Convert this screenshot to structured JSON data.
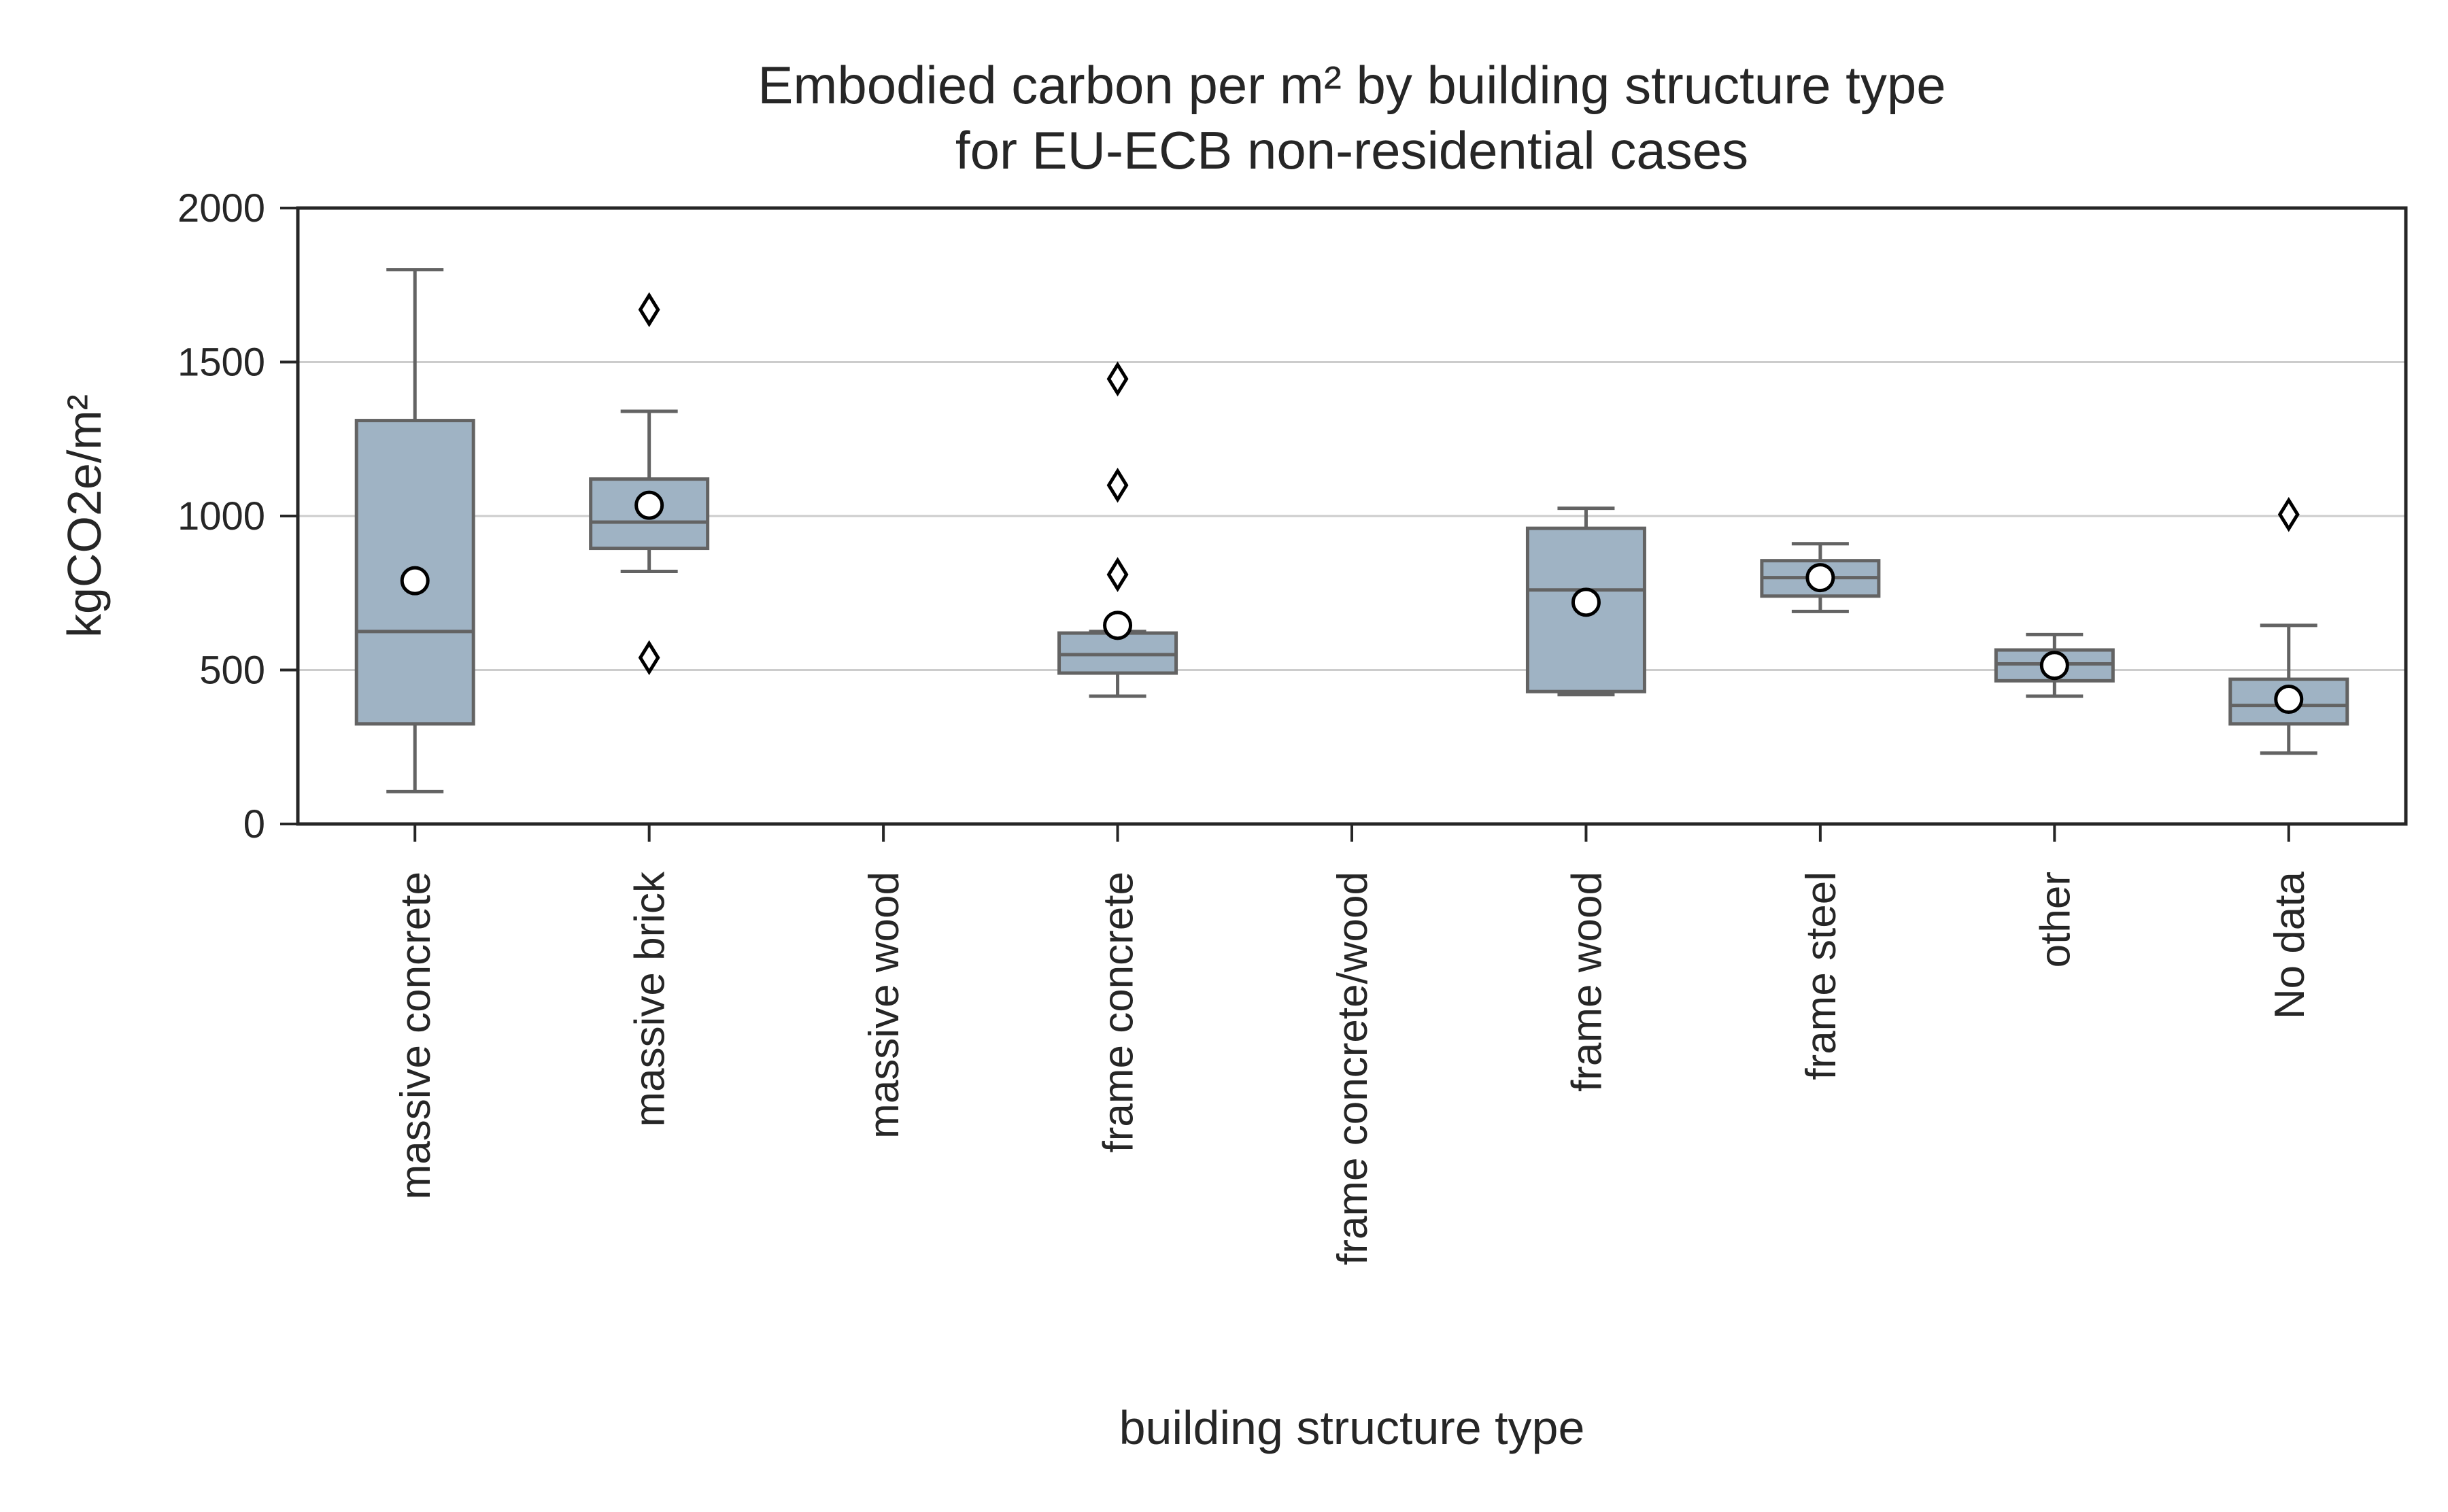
{
  "chart_data": {
    "type": "boxplot",
    "title": [
      "Embodied carbon per m² by building structure type",
      "for EU-ECB non-residential cases"
    ],
    "xlabel": "building structure type",
    "ylabel": "kgCO2e/m²",
    "ylim": [
      0,
      2000
    ],
    "yticks": [
      0,
      500,
      1000,
      1500,
      2000
    ],
    "grid": "horizontal",
    "colors": {
      "box": "#9fb3c4",
      "edge": "#636363",
      "mean_fill": "#ffffff",
      "mean_edge": "#000000",
      "grid": "#cccccc"
    },
    "categories": [
      "massive concrete",
      "massive brick",
      "massive wood",
      "frame concrete",
      "frame concrete/wood",
      "frame wood",
      "frame steel",
      "other",
      "No data"
    ],
    "boxes": [
      {
        "category": "massive concrete",
        "whisker_low": 105,
        "q1": 325,
        "median": 625,
        "q3": 1310,
        "whisker_high": 1800,
        "mean": 790,
        "outliers": []
      },
      {
        "category": "massive brick",
        "whisker_low": 820,
        "q1": 895,
        "median": 980,
        "q3": 1120,
        "whisker_high": 1340,
        "mean": 1035,
        "outliers": [
          1670,
          540
        ]
      },
      null,
      {
        "category": "frame concrete",
        "whisker_low": 415,
        "q1": 490,
        "median": 550,
        "q3": 620,
        "whisker_high": 625,
        "mean": 645,
        "outliers": [
          1445,
          1100,
          810
        ]
      },
      null,
      {
        "category": "frame wood",
        "whisker_low": 420,
        "q1": 430,
        "median": 760,
        "q3": 960,
        "whisker_high": 1025,
        "mean": 720,
        "outliers": []
      },
      {
        "category": "frame steel",
        "whisker_low": 690,
        "q1": 740,
        "median": 800,
        "q3": 855,
        "whisker_high": 910,
        "mean": 800,
        "outliers": []
      },
      {
        "category": "other",
        "whisker_low": 415,
        "q1": 465,
        "median": 520,
        "q3": 565,
        "whisker_high": 615,
        "mean": 515,
        "outliers": []
      },
      {
        "category": "No data",
        "whisker_low": 230,
        "q1": 325,
        "median": 385,
        "q3": 470,
        "whisker_high": 645,
        "mean": 405,
        "outliers": [
          1005
        ]
      }
    ]
  }
}
